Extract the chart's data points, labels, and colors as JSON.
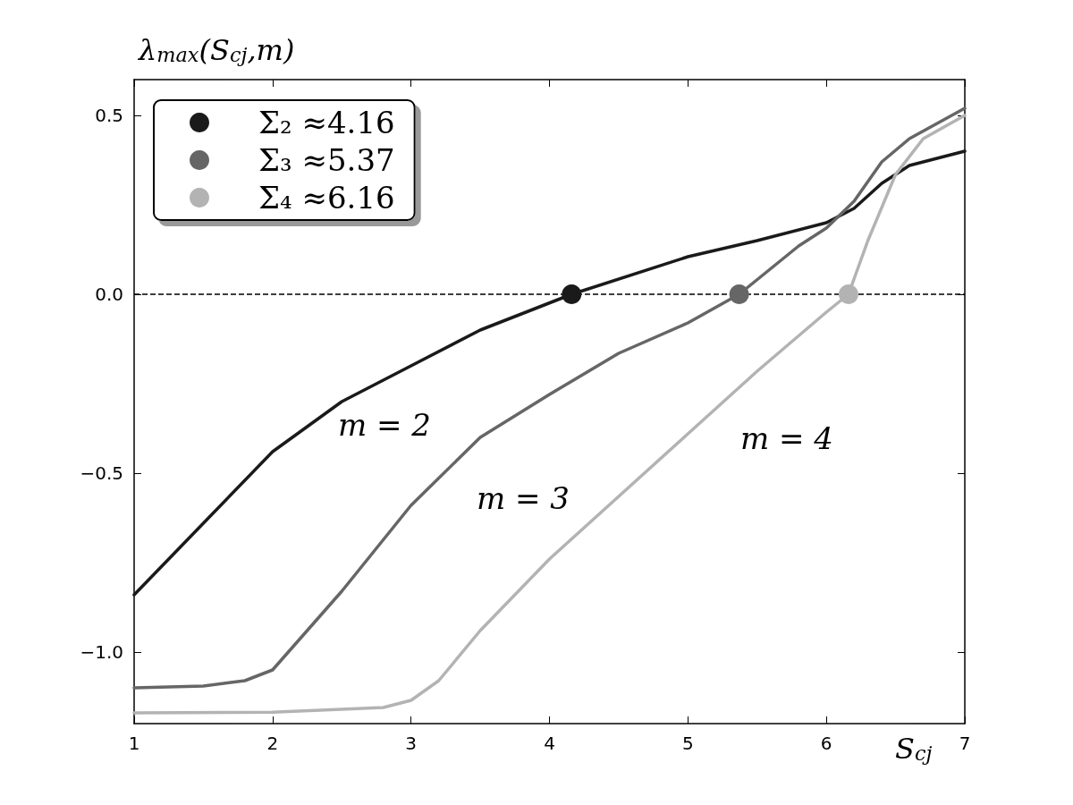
{
  "chart_data": {
    "type": "line",
    "ylabel": "λ$_{max}$(S$_{cj}$,m)",
    "xlabel": "S$_{cj}$",
    "xlim": [
      1,
      7
    ],
    "xticks": [
      1,
      2,
      3,
      4,
      5,
      6,
      7
    ],
    "ylim": [
      -1.2,
      0.6
    ],
    "yticks": [
      {
        "value": -1.0,
        "label": "−1.0"
      },
      {
        "value": -0.5,
        "label": "−0.5"
      },
      {
        "value": 0.0,
        "label": "0.0"
      },
      {
        "value": 0.5,
        "label": "0.5"
      }
    ],
    "grid": false,
    "legend": "top left",
    "line_style": "solid",
    "series": [
      {
        "color": "#1a1a1a",
        "x": [
          1,
          1.5,
          2,
          2.5,
          3,
          3.5,
          4.16,
          5,
          5.5,
          6,
          6.2,
          6.4,
          6.6,
          7
        ],
        "values": [
          -0.84,
          -0.64,
          -0.44,
          -0.3,
          -0.2,
          -0.1,
          0,
          0.105,
          0.15,
          0.2,
          0.24,
          0.31,
          0.36,
          0.4
        ]
      },
      {
        "color": "#666666",
        "x": [
          1,
          1.5,
          1.8,
          2,
          2.5,
          3,
          3.5,
          4,
          4.5,
          5,
          5.37,
          5.8,
          6,
          6.2,
          6.4,
          6.6,
          7
        ],
        "values": [
          -1.1,
          -1.095,
          -1.08,
          -1.05,
          -0.83,
          -0.59,
          -0.4,
          -0.28,
          -0.165,
          -0.08,
          0,
          0.135,
          0.185,
          0.26,
          0.37,
          0.435,
          0.52
        ]
      },
      {
        "color": "#b3b3b3",
        "x": [
          1,
          2,
          2.8,
          3,
          3.2,
          3.5,
          4,
          4.5,
          5,
          5.5,
          6,
          6.16,
          6.3,
          6.5,
          6.7,
          7
        ],
        "values": [
          -1.17,
          -1.168,
          -1.155,
          -1.135,
          -1.08,
          -0.94,
          -0.74,
          -0.565,
          -0.39,
          -0.215,
          -0.05,
          0,
          0.15,
          0.335,
          0.435,
          0.5
        ]
      },
      {
        "type": "scatter",
        "marker": "circle",
        "name": "Σ₂ ≈4.16",
        "color": "#1a1a1a",
        "x": [
          4.16
        ],
        "values": [
          0
        ]
      },
      {
        "type": "scatter",
        "marker": "circle",
        "name": "Σ₃ ≈5.37",
        "color": "#666666",
        "x": [
          5.37
        ],
        "values": [
          0
        ]
      },
      {
        "type": "scatter",
        "marker": "circle",
        "name": "Σ₄ ≈6.16",
        "color": "#b3b3b3",
        "x": [
          6.16
        ],
        "values": [
          0
        ]
      }
    ],
    "ref_lines": [
      {
        "axis": "y",
        "value": 0,
        "color": "#000000",
        "line_style": "dashed"
      }
    ],
    "annotations": [
      "m = 2",
      "m = 3",
      "m = 4"
    ]
  }
}
